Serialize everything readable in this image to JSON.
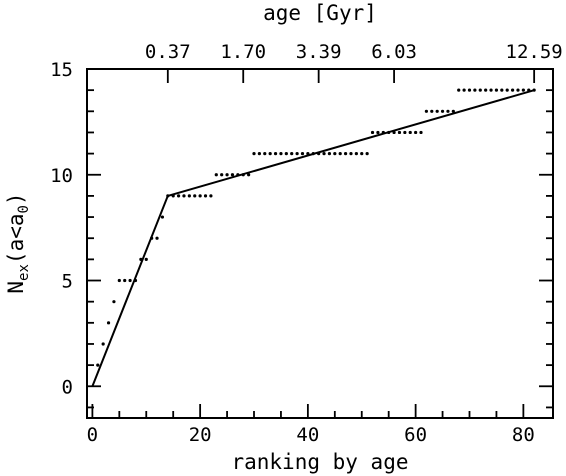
{
  "chart_data": {
    "type": "scatter",
    "xlabel": "ranking by age",
    "ylabel_main": "N",
    "ylabel_sub": "ex",
    "ylabel_rest_open": "(a<a",
    "ylabel_sub2": "0",
    "ylabel_rest_close": ")",
    "top_axis_title": "age [Gyr]",
    "xlim": [
      -1,
      85.5
    ],
    "ylim": [
      -1.5,
      15
    ],
    "x_ticks_major": [
      0,
      20,
      40,
      60,
      80
    ],
    "x_ticks_major_labels": [
      "0",
      "20",
      "40",
      "60",
      "80"
    ],
    "y_ticks_major": [
      0,
      5,
      10,
      15
    ],
    "y_ticks_major_labels": [
      "0",
      "5",
      "10",
      "15"
    ],
    "top_ticks": [
      {
        "rank": 14,
        "label": "0.37"
      },
      {
        "rank": 28,
        "label": "1.70"
      },
      {
        "rank": 42,
        "label": "3.39"
      },
      {
        "rank": 56,
        "label": "6.03"
      },
      {
        "rank": 82,
        "label": "12.59"
      }
    ],
    "series": [
      {
        "x": [
          1,
          2,
          3,
          4,
          5,
          6,
          7,
          8,
          9,
          10,
          11,
          12,
          13,
          14,
          15,
          16,
          17,
          18,
          19,
          20,
          21,
          22,
          23,
          24,
          25,
          26,
          27,
          28,
          29,
          30,
          31,
          32,
          33,
          34,
          35,
          36,
          37,
          38,
          39,
          40,
          41,
          42,
          43,
          44,
          45,
          46,
          47,
          48,
          49,
          50,
          51,
          52,
          53,
          54,
          55,
          56,
          57,
          58,
          59,
          60,
          61,
          62,
          63,
          64,
          65,
          66,
          67,
          68,
          69,
          70,
          71,
          72,
          73,
          74,
          75,
          76,
          77,
          78,
          79,
          80,
          81,
          82
        ],
        "y": [
          1,
          2,
          3,
          4,
          5,
          5,
          5,
          5,
          6,
          6,
          7,
          7,
          8,
          9,
          9,
          9,
          9,
          9,
          9,
          9,
          9,
          9,
          10,
          10,
          10,
          10,
          10,
          10,
          10,
          11,
          11,
          11,
          11,
          11,
          11,
          11,
          11,
          11,
          11,
          11,
          11,
          11,
          11,
          11,
          11,
          11,
          11,
          11,
          11,
          11,
          11,
          12,
          12,
          12,
          12,
          12,
          12,
          12,
          12,
          12,
          12,
          13,
          13,
          13,
          13,
          13,
          13,
          14,
          14,
          14,
          14,
          14,
          14,
          14,
          14,
          14,
          14,
          14,
          14,
          14,
          14,
          14
        ]
      }
    ],
    "fit_line": {
      "x": [
        0,
        14,
        82
      ],
      "y": [
        0,
        9,
        14
      ]
    }
  }
}
